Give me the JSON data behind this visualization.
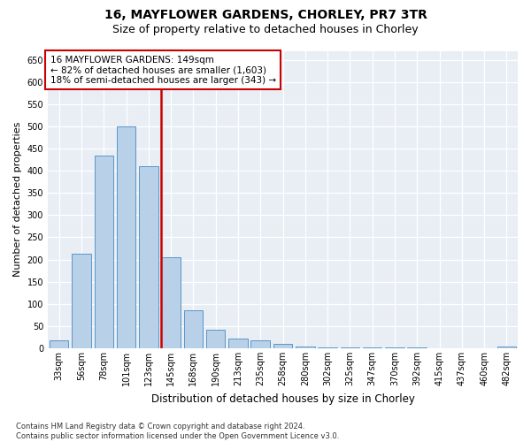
{
  "title_line1": "16, MAYFLOWER GARDENS, CHORLEY, PR7 3TR",
  "title_line2": "Size of property relative to detached houses in Chorley",
  "xlabel": "Distribution of detached houses by size in Chorley",
  "ylabel": "Number of detached properties",
  "categories": [
    "33sqm",
    "56sqm",
    "78sqm",
    "101sqm",
    "123sqm",
    "145sqm",
    "168sqm",
    "190sqm",
    "213sqm",
    "235sqm",
    "258sqm",
    "280sqm",
    "302sqm",
    "325sqm",
    "347sqm",
    "370sqm",
    "392sqm",
    "415sqm",
    "437sqm",
    "460sqm",
    "482sqm"
  ],
  "values": [
    17,
    213,
    435,
    500,
    410,
    205,
    85,
    42,
    22,
    17,
    10,
    5,
    3,
    3,
    2,
    2,
    2,
    0,
    0,
    0,
    5
  ],
  "bar_color": "#b8d0e8",
  "bar_edge_color": "#5a96c8",
  "red_line_index": 5,
  "red_line_color": "#cc0000",
  "annotation_text": "16 MAYFLOWER GARDENS: 149sqm\n← 82% of detached houses are smaller (1,603)\n18% of semi-detached houses are larger (343) →",
  "annotation_box_color": "#ffffff",
  "annotation_box_edge_color": "#cc0000",
  "ylim": [
    0,
    670
  ],
  "yticks": [
    0,
    50,
    100,
    150,
    200,
    250,
    300,
    350,
    400,
    450,
    500,
    550,
    600,
    650
  ],
  "footnote": "Contains HM Land Registry data © Crown copyright and database right 2024.\nContains public sector information licensed under the Open Government Licence v3.0.",
  "fig_bg_color": "#ffffff",
  "plot_bg_color": "#e8eef4",
  "grid_color": "#ffffff",
  "title_fontsize": 10,
  "subtitle_fontsize": 9,
  "tick_fontsize": 7,
  "xlabel_fontsize": 8.5,
  "ylabel_fontsize": 8,
  "annotation_fontsize": 7.5,
  "footnote_fontsize": 6
}
